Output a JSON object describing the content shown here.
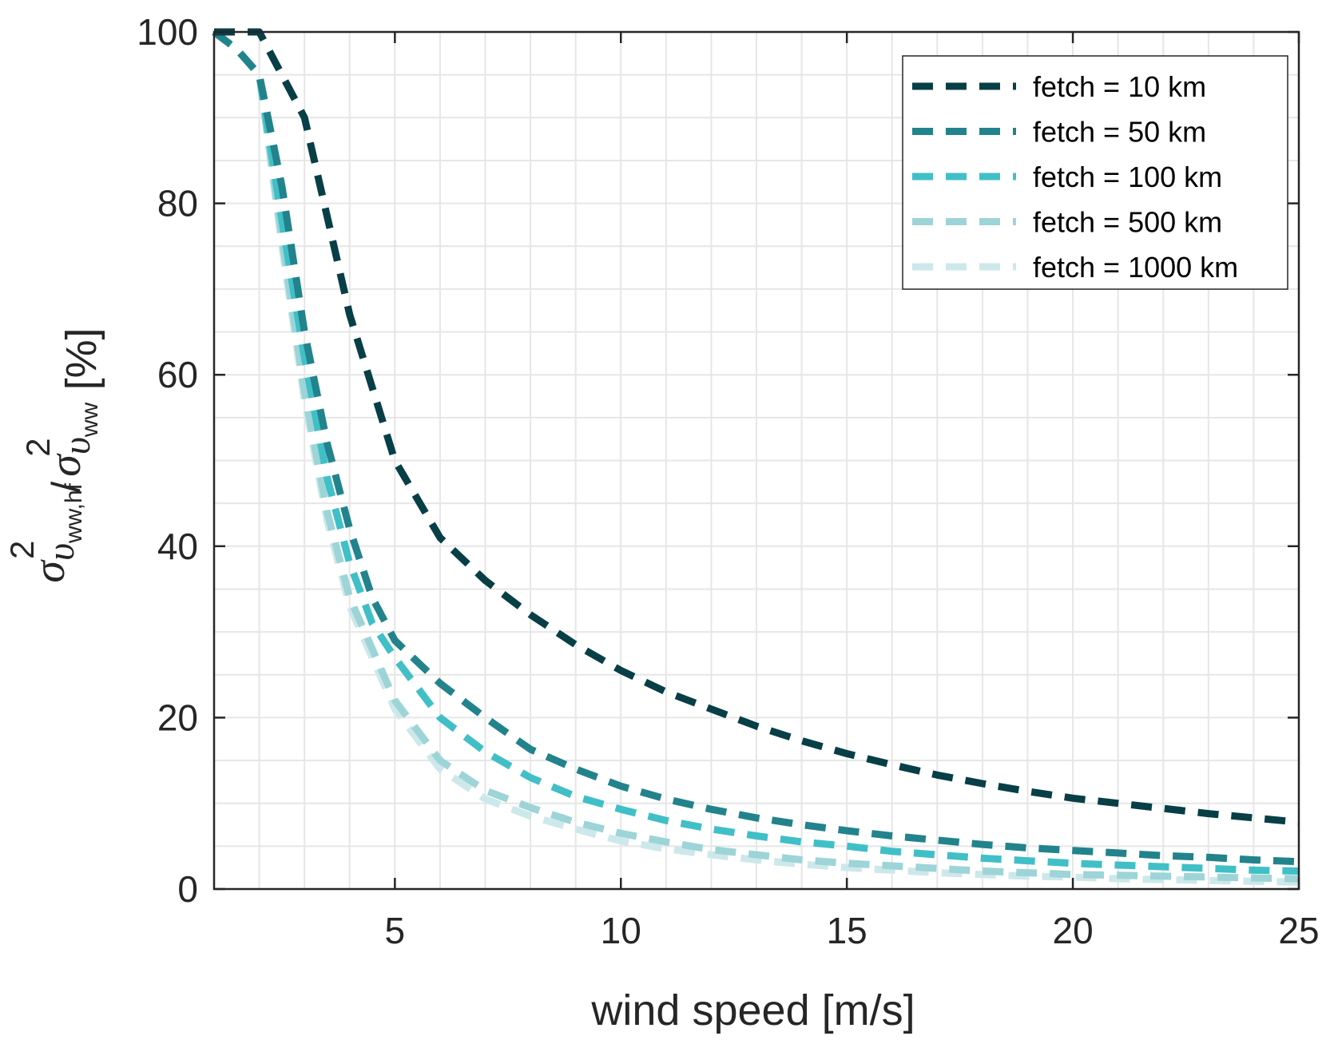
{
  "chart_data": {
    "type": "line",
    "title": "",
    "xlabel": "wind speed [m/s]",
    "ylabel": {
      "sigma": "σ",
      "upsilon": "υ",
      "exponent": "2",
      "sub_hf": "ww,hf",
      "sub": "ww",
      "slash": "/",
      "unit": "[%]"
    },
    "xlim": [
      1,
      25
    ],
    "ylim": [
      0,
      100
    ],
    "xticks": [
      5,
      10,
      15,
      20,
      25
    ],
    "yticks": [
      0,
      20,
      40,
      60,
      80,
      100
    ],
    "grid": true,
    "legend_position": "top-right",
    "series": [
      {
        "name": "fetch = 10 km",
        "color": "#083f47",
        "x": [
          1,
          2,
          3,
          4,
          5,
          6,
          7,
          8,
          9,
          10,
          11,
          12,
          13,
          14,
          15,
          16,
          17,
          18,
          19,
          20,
          21,
          22,
          23,
          24,
          25
        ],
        "y": [
          100,
          100,
          90,
          67,
          50,
          41,
          36,
          32,
          28.5,
          25.5,
          23,
          21,
          19,
          17.3,
          15.8,
          14.5,
          13.3,
          12.3,
          11.4,
          10.6,
          10,
          9.4,
          8.8,
          8.3,
          7.8
        ]
      },
      {
        "name": "fetch = 50 km",
        "color": "#22838c",
        "x": [
          1,
          1.5,
          2,
          2.5,
          3,
          3.5,
          4,
          4.5,
          5,
          6,
          7,
          8,
          9,
          10,
          11,
          12,
          13,
          14,
          15,
          16,
          17,
          18,
          19,
          20,
          21,
          22,
          23,
          24,
          25
        ],
        "y": [
          100,
          98,
          95,
          82,
          65,
          52,
          42,
          34,
          29,
          24,
          20,
          16.3,
          14,
          12,
          10.5,
          9.3,
          8.3,
          7.5,
          6.8,
          6.2,
          5.7,
          5.2,
          4.8,
          4.5,
          4.2,
          3.9,
          3.7,
          3.4,
          3.2
        ]
      },
      {
        "name": "fetch = 100 km",
        "color": "#41bfc7",
        "x": [
          1,
          1.5,
          2,
          2.5,
          3,
          3.5,
          4,
          4.5,
          5,
          6,
          7,
          8,
          9,
          10,
          11,
          12,
          13,
          14,
          15,
          16,
          17,
          18,
          19,
          20,
          21,
          22,
          23,
          24,
          25
        ],
        "y": [
          100,
          98,
          95,
          78,
          62,
          48,
          38,
          31,
          27,
          20,
          16,
          13,
          10.8,
          9.3,
          8,
          7,
          6.2,
          5.5,
          5,
          4.4,
          4,
          3.6,
          3.3,
          3,
          2.8,
          2.6,
          2.4,
          2.2,
          2.1
        ]
      },
      {
        "name": "fetch = 500 km",
        "color": "#9dd4d7",
        "x": [
          1,
          1.5,
          2,
          2.5,
          3,
          3.5,
          4,
          4.5,
          5,
          6,
          7,
          8,
          9,
          10,
          11,
          12,
          13,
          14,
          15,
          16,
          17,
          18,
          19,
          20,
          21,
          22,
          23,
          24,
          25
        ],
        "y": [
          100,
          98,
          95,
          76,
          58,
          44,
          34,
          28,
          22,
          15,
          11.5,
          9.5,
          7.8,
          6.5,
          5.5,
          4.6,
          4,
          3.4,
          3,
          2.7,
          2.4,
          2.1,
          1.9,
          1.7,
          1.6,
          1.5,
          1.4,
          1.3,
          1.2
        ]
      },
      {
        "name": "fetch = 1000 km",
        "color": "#cde8ea",
        "x": [
          1,
          1.5,
          2,
          2.5,
          3,
          3.5,
          4,
          4.5,
          5,
          6,
          7,
          8,
          9,
          10,
          11,
          12,
          13,
          14,
          15,
          16,
          17,
          18,
          19,
          20,
          21,
          22,
          23,
          24,
          25
        ],
        "y": [
          100,
          98,
          95,
          75,
          57,
          43,
          33,
          27,
          21,
          14,
          10.5,
          8.5,
          7,
          5.6,
          4.7,
          4,
          3.4,
          2.9,
          2.5,
          2.2,
          1.9,
          1.7,
          1.5,
          1.4,
          1.2,
          1.1,
          1,
          0.9,
          0.8
        ]
      }
    ]
  }
}
